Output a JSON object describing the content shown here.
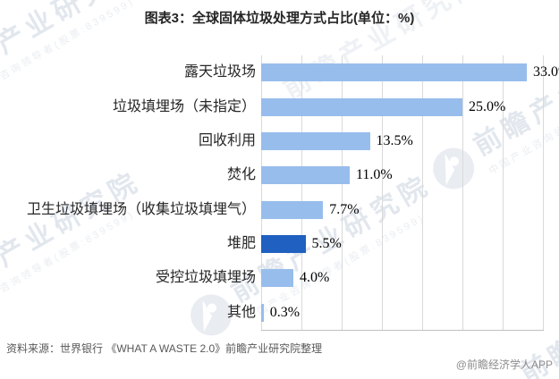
{
  "title": "图表3：全球固体垃圾处理方式占比(单位：%)",
  "chart_data": {
    "type": "bar",
    "orientation": "horizontal",
    "title": "图表3：全球固体垃圾处理方式占比(单位：%)",
    "categories": [
      "露天垃圾场",
      "垃圾填埋场（未指定）",
      "回收利用",
      "焚化",
      "卫生垃圾填埋场（收集垃圾填埋气）",
      "堆肥",
      "受控垃圾填埋场",
      "其他"
    ],
    "values": [
      33.0,
      25.0,
      13.5,
      11.0,
      7.7,
      5.5,
      4.0,
      0.3
    ],
    "value_labels": [
      "33.0%",
      "25.0%",
      "13.5%",
      "11.0%",
      "7.7%",
      "5.5%",
      "4.0%",
      "0.3%"
    ],
    "xlim": [
      0,
      35
    ],
    "gridline_step": 5,
    "grid": "on",
    "legend": "none",
    "highlight_index": 5
  },
  "colors": {
    "bar": "#97BDEC",
    "bar_highlight": "#1F60C0",
    "grid": "#D9D9D9",
    "axis": "#BFBFBF",
    "title_text": "#262626",
    "category_text": "#262626",
    "value_text": "#000000",
    "source_text": "#595959",
    "credit_text": "#8C8C8C",
    "watermark": "#E2E7EE"
  },
  "footer": {
    "source": "资料来源：世界银行 《WHAT A WASTE 2.0》前瞻产业研究院整理",
    "credit": "@前瞻经济学人APP"
  },
  "watermark": {
    "brand": "前瞻产业研究院",
    "tagline": "中国产业咨询领导者(股票:839599)"
  }
}
